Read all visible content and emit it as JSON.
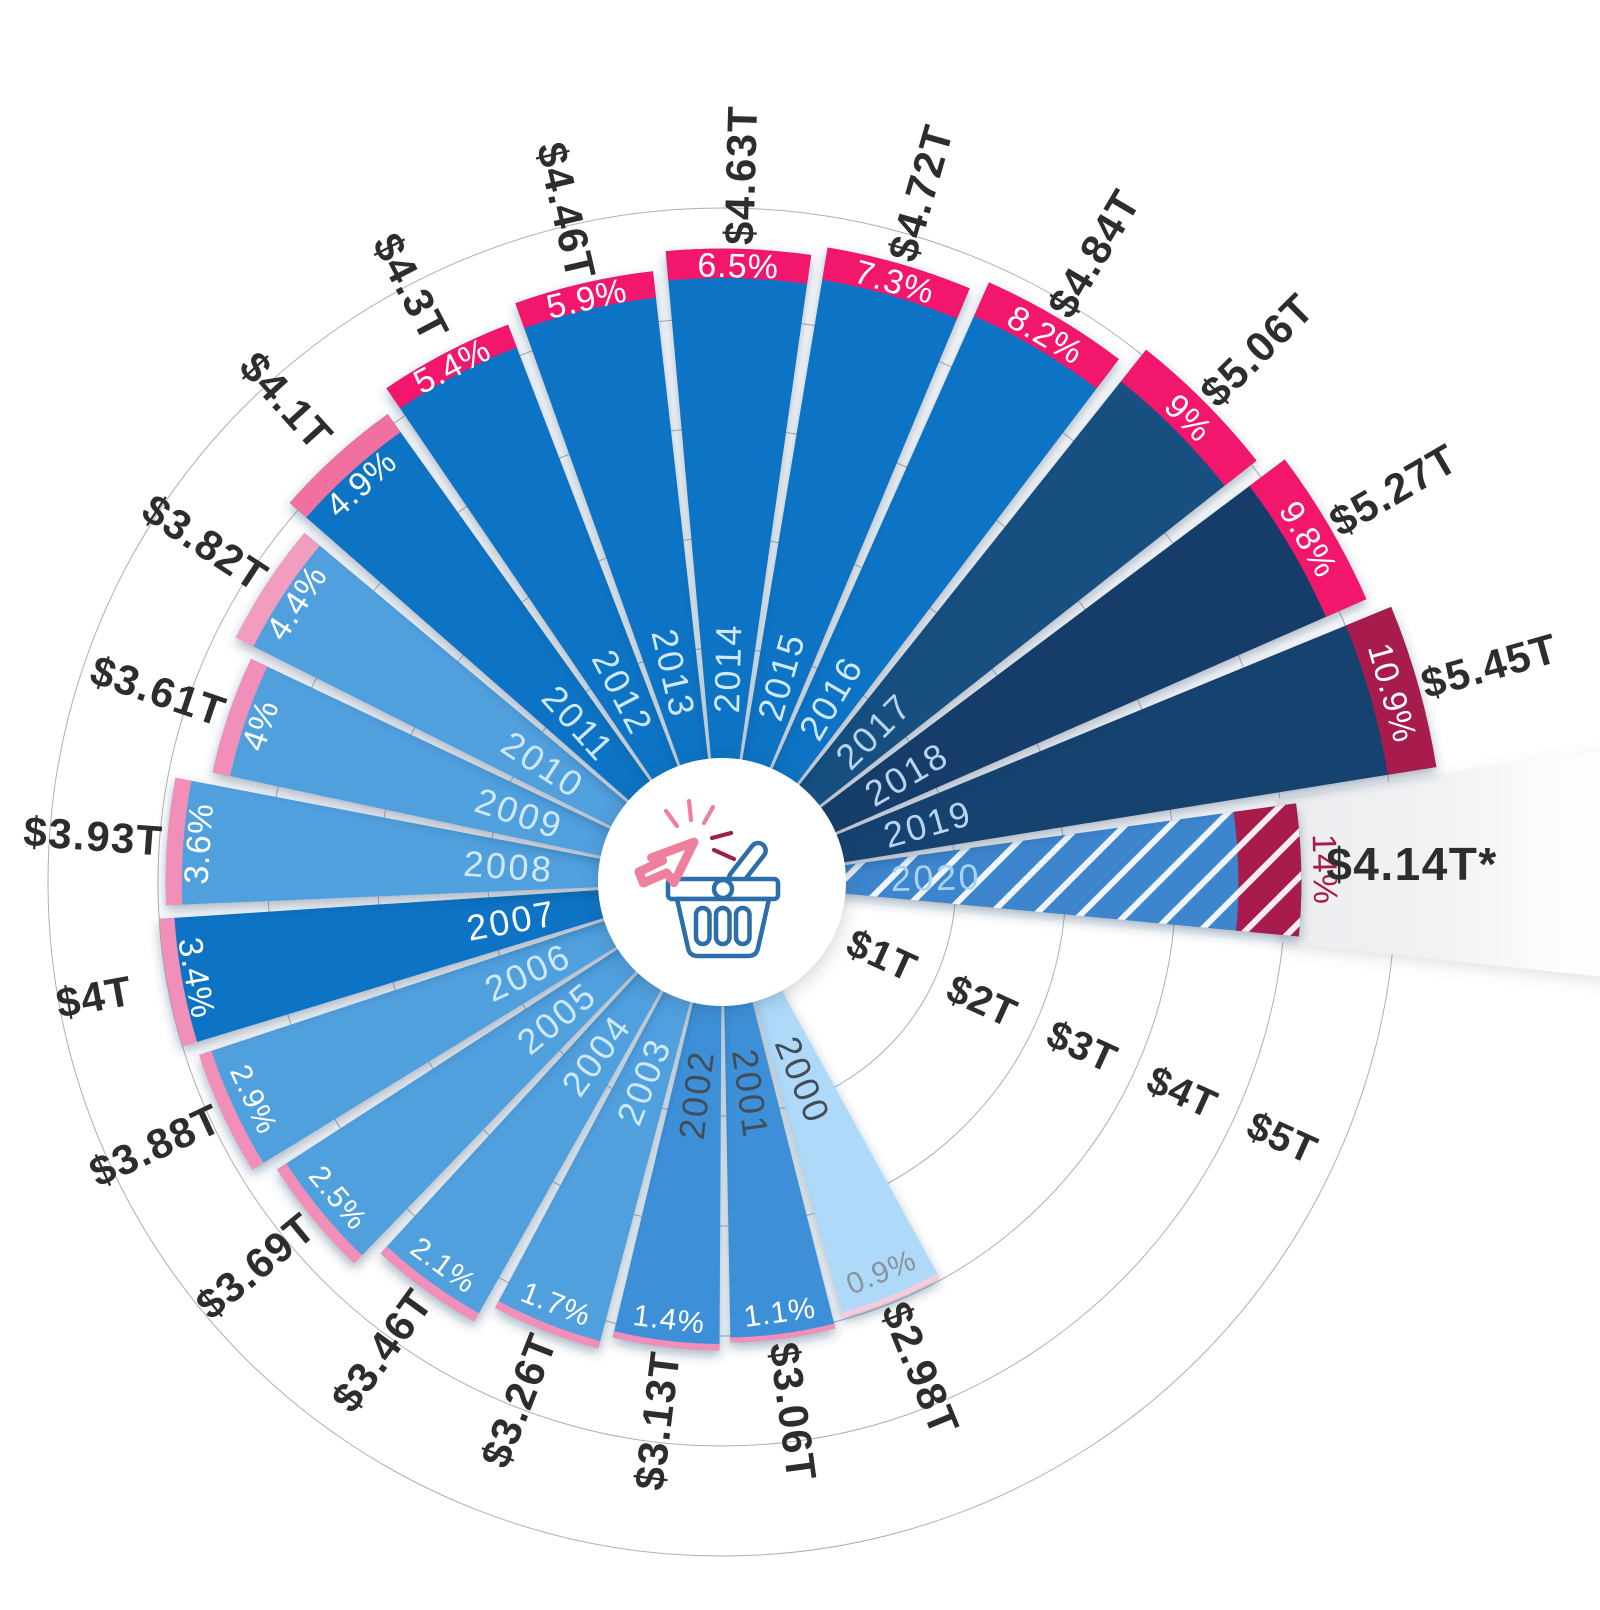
{
  "chart_data": {
    "type": "radial-bar",
    "title": "",
    "units": "USD trillions",
    "legend_position": "none",
    "grid": {
      "on": true,
      "ticks": [
        {
          "label": "$1T",
          "value": 1
        },
        {
          "label": "$2T",
          "value": 2
        },
        {
          "label": "$3T",
          "value": 3
        },
        {
          "label": "$4T",
          "value": 4
        },
        {
          "label": "$5T",
          "value": 5
        }
      ]
    },
    "center_icons": [
      "click-cursor-icon",
      "shopping-basket-icon"
    ],
    "colors": {
      "background": "#ffffff",
      "value_text": "#2d2d2d",
      "grid_line": "#9b9b9b",
      "grid_text": "#2d2d2d",
      "hatch_stripe": "#ffffff",
      "forecast_band": "#ededf0",
      "hub_fill": "#ffffff",
      "basket_stroke": "#2b6ea9",
      "cursor_pink": "#ee7f9d",
      "cursor_dark_red": "#9e2045"
    },
    "series": [
      {
        "year": "2000",
        "value": 2.98,
        "value_label": "$2.98T",
        "pct": 0.9,
        "pct_label": "0.9%",
        "wedge_color": "#aed9f8",
        "band_color": "#f9c9dc",
        "pct_text_color": "#8a929c",
        "year_text_color": "#434d59",
        "hatched": false
      },
      {
        "year": "2001",
        "value": 3.06,
        "value_label": "$3.06T",
        "pct": 1.1,
        "pct_label": "1.1%",
        "wedge_color": "#3e90d8",
        "band_color": "#f28fb8",
        "pct_text_color": "#ffffff",
        "year_text_color": "#434d59",
        "hatched": false
      },
      {
        "year": "2002",
        "value": 3.13,
        "value_label": "$3.13T",
        "pct": 1.4,
        "pct_label": "1.4%",
        "wedge_color": "#3e90d8",
        "band_color": "#f28fb8",
        "pct_text_color": "#ffffff",
        "year_text_color": "#434d59",
        "hatched": false
      },
      {
        "year": "2003",
        "value": 3.26,
        "value_label": "$3.26T",
        "pct": 1.7,
        "pct_label": "1.7%",
        "wedge_color": "#51a0de",
        "band_color": "#f28fb8",
        "pct_text_color": "#ffffff",
        "year_text_color": "#cfe8fb",
        "hatched": false
      },
      {
        "year": "2004",
        "value": 3.46,
        "value_label": "$3.46T",
        "pct": 2.1,
        "pct_label": "2.1%",
        "wedge_color": "#51a0de",
        "band_color": "#f28fb8",
        "pct_text_color": "#ffffff",
        "year_text_color": "#cfe8fb",
        "hatched": false
      },
      {
        "year": "2005",
        "value": 3.69,
        "value_label": "$3.69T",
        "pct": 2.5,
        "pct_label": "2.5%",
        "wedge_color": "#51a0de",
        "band_color": "#f28fb8",
        "pct_text_color": "#ffffff",
        "year_text_color": "#cfe8fb",
        "hatched": false
      },
      {
        "year": "2006",
        "value": 3.88,
        "value_label": "$3.88T",
        "pct": 2.9,
        "pct_label": "2.9%",
        "wedge_color": "#51a0de",
        "band_color": "#f28fb8",
        "pct_text_color": "#ffffff",
        "year_text_color": "#cfe8fb",
        "hatched": false
      },
      {
        "year": "2007",
        "value": 4.0,
        "value_label": "$4T",
        "pct": 3.4,
        "pct_label": "3.4%",
        "wedge_color": "#1173c4",
        "band_color": "#f28fb8",
        "pct_text_color": "#ffffff",
        "year_text_color": "#ffffff",
        "hatched": false
      },
      {
        "year": "2008",
        "value": 3.93,
        "value_label": "$3.93T",
        "pct": 3.6,
        "pct_label": "3.6%",
        "wedge_color": "#51a0de",
        "band_color": "#f28fb8",
        "pct_text_color": "#ffffff",
        "year_text_color": "#cfe8fb",
        "hatched": false
      },
      {
        "year": "2009",
        "value": 3.61,
        "value_label": "$3.61T",
        "pct": 4.0,
        "pct_label": "4%",
        "wedge_color": "#51a0de",
        "band_color": "#f28fb8",
        "pct_text_color": "#ffffff",
        "year_text_color": "#cfe8fb",
        "hatched": false
      },
      {
        "year": "2010",
        "value": 3.82,
        "value_label": "$3.82T",
        "pct": 4.4,
        "pct_label": "4.4%",
        "wedge_color": "#51a0de",
        "band_color": "#f29cc0",
        "pct_text_color": "#ffffff",
        "year_text_color": "#cfe8fb",
        "hatched": false
      },
      {
        "year": "2011",
        "value": 4.1,
        "value_label": "$4.1T",
        "pct": 4.9,
        "pct_label": "4.9%",
        "wedge_color": "#1173c4",
        "band_color": "#f0719f",
        "pct_text_color": "#ffffff",
        "year_text_color": "#cfe8fb",
        "hatched": false
      },
      {
        "year": "2012",
        "value": 4.3,
        "value_label": "$4.3T",
        "pct": 5.4,
        "pct_label": "5.4%",
        "wedge_color": "#1173c4",
        "band_color": "#f2186d",
        "pct_text_color": "#ffffff",
        "year_text_color": "#cfe8fb",
        "hatched": false
      },
      {
        "year": "2013",
        "value": 4.46,
        "value_label": "$4.46T",
        "pct": 5.9,
        "pct_label": "5.9%",
        "wedge_color": "#1173c4",
        "band_color": "#f2186d",
        "pct_text_color": "#ffffff",
        "year_text_color": "#cfe8fb",
        "hatched": false
      },
      {
        "year": "2014",
        "value": 4.63,
        "value_label": "$4.63T",
        "pct": 6.5,
        "pct_label": "6.5%",
        "wedge_color": "#1173c4",
        "band_color": "#f2186d",
        "pct_text_color": "#ffffff",
        "year_text_color": "#cfe8fb",
        "hatched": false
      },
      {
        "year": "2015",
        "value": 4.72,
        "value_label": "$4.72T",
        "pct": 7.3,
        "pct_label": "7.3%",
        "wedge_color": "#1173c4",
        "band_color": "#f2186d",
        "pct_text_color": "#ffffff",
        "year_text_color": "#cfe8fb",
        "hatched": false
      },
      {
        "year": "2016",
        "value": 4.84,
        "value_label": "$4.84T",
        "pct": 8.2,
        "pct_label": "8.2%",
        "wedge_color": "#1173c4",
        "band_color": "#f2186d",
        "pct_text_color": "#ffffff",
        "year_text_color": "#cfe8fb",
        "hatched": false
      },
      {
        "year": "2017",
        "value": 5.06,
        "value_label": "$5.06T",
        "pct": 9.0,
        "pct_label": "9%",
        "wedge_color": "#175080",
        "band_color": "#f2186d",
        "pct_text_color": "#ffffff",
        "year_text_color": "#b8d4ee",
        "hatched": false
      },
      {
        "year": "2018",
        "value": 5.27,
        "value_label": "$5.27T",
        "pct": 9.8,
        "pct_label": "9.8%",
        "wedge_color": "#123e6a",
        "band_color": "#f2186d",
        "pct_text_color": "#ffffff",
        "year_text_color": "#b8d4ee",
        "hatched": false
      },
      {
        "year": "2019",
        "value": 5.45,
        "value_label": "$5.45T",
        "pct": 10.9,
        "pct_label": "10.9%",
        "wedge_color": "#154270",
        "band_color": "#a81a4d",
        "pct_text_color": "#ffffff",
        "year_text_color": "#b8d4ee",
        "hatched": false
      },
      {
        "year": "2020",
        "value": 4.14,
        "value_label": "$4.14T*",
        "pct": 14.0,
        "pct_label": "14%",
        "wedge_color": "#3d85cd",
        "band_color": "#a81a4d",
        "pct_text_color": "#a81a4d",
        "year_text_color": "#a8d3f2",
        "hatched": true,
        "forecast": true
      }
    ]
  }
}
